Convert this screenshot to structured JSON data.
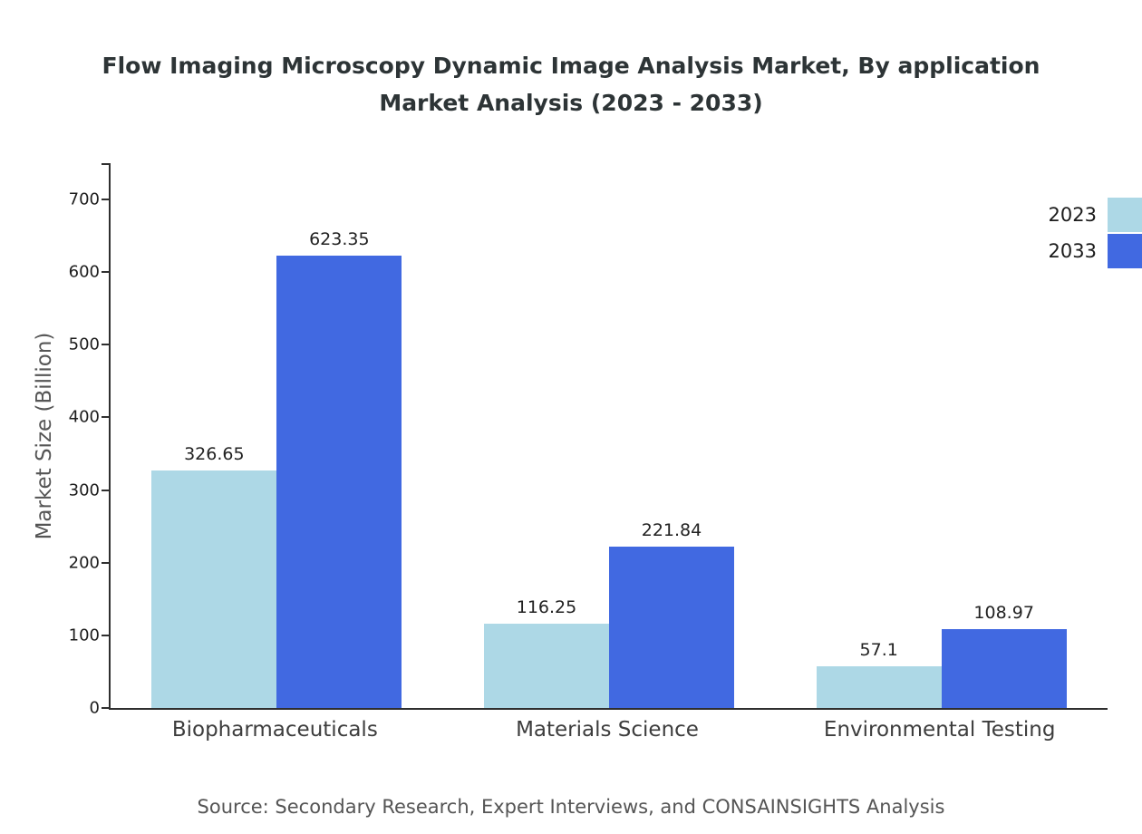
{
  "title": {
    "line1": "Flow Imaging Microscopy Dynamic Image Analysis Market, By application",
    "line2": "Market Analysis (2023 - 2033)"
  },
  "chart_data": {
    "type": "bar",
    "categories": [
      "Biopharmaceuticals",
      "Materials Science",
      "Environmental Testing"
    ],
    "series": [
      {
        "name": "2023",
        "color": "#add8e6",
        "values": [
          326.65,
          116.25,
          57.1
        ]
      },
      {
        "name": "2033",
        "color": "#4169e1",
        "values": [
          623.35,
          221.84,
          108.97
        ]
      }
    ],
    "title": "Flow Imaging Microscopy Dynamic Image Analysis Market, By application Market Analysis (2023 - 2033)",
    "xlabel": "",
    "ylabel": "Market Size (Billion)",
    "ylim": [
      0,
      750
    ],
    "yticks": [
      0,
      100,
      200,
      300,
      400,
      500,
      600,
      700
    ],
    "grid": false,
    "legend_position": "top-right"
  },
  "source": "Source: Secondary Research, Expert Interviews, and CONSAINSIGHTS Analysis"
}
